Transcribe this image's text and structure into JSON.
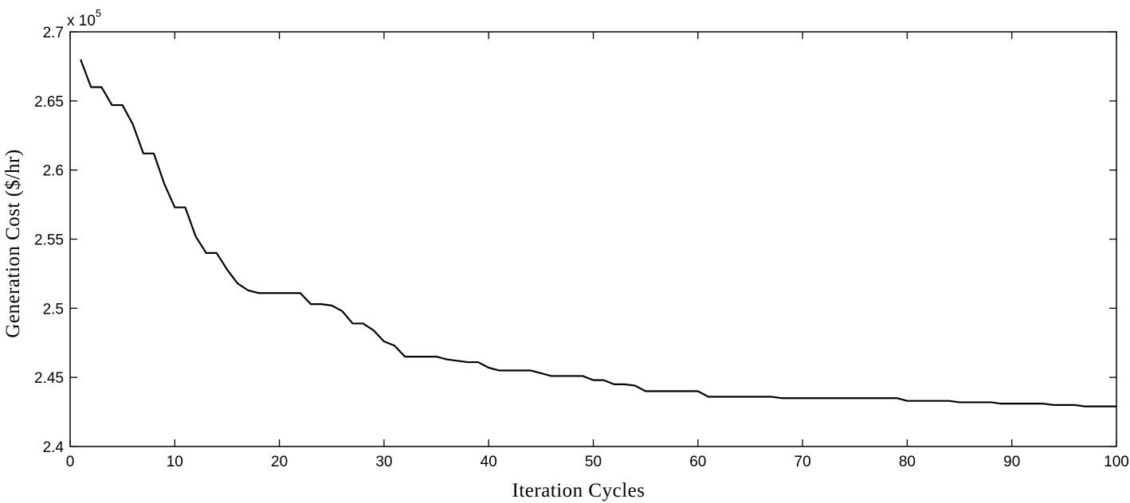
{
  "chart_data": {
    "type": "line",
    "title": "",
    "xlabel": "Iteration Cycles",
    "ylabel": "Generation Cost ($/hr)",
    "y_multiplier_base": "x 10",
    "y_multiplier_exponent": "5",
    "xlim": [
      0,
      100
    ],
    "ylim": [
      2.4,
      2.7
    ],
    "xticks": [
      0,
      10,
      20,
      30,
      40,
      50,
      60,
      70,
      80,
      90,
      100
    ],
    "yticks": [
      2.4,
      2.45,
      2.5,
      2.55,
      2.6,
      2.65,
      2.7
    ],
    "ytick_labels": [
      "2.4",
      "2.45",
      "2.5",
      "2.55",
      "2.6",
      "2.65",
      "2.7"
    ],
    "grid": false,
    "series": [
      {
        "color": "#000000",
        "x": [
          1,
          2,
          3,
          4,
          5,
          6,
          7,
          8,
          9,
          10,
          11,
          12,
          13,
          14,
          15,
          16,
          17,
          18,
          19,
          20,
          21,
          22,
          23,
          24,
          25,
          26,
          27,
          28,
          29,
          30,
          31,
          32,
          33,
          34,
          35,
          36,
          37,
          38,
          39,
          40,
          41,
          42,
          43,
          44,
          45,
          46,
          47,
          48,
          49,
          50,
          51,
          52,
          53,
          54,
          55,
          56,
          57,
          58,
          59,
          60,
          61,
          62,
          63,
          64,
          65,
          66,
          67,
          68,
          69,
          70,
          71,
          72,
          73,
          74,
          75,
          76,
          77,
          78,
          79,
          80,
          81,
          82,
          83,
          84,
          85,
          86,
          87,
          88,
          89,
          90,
          91,
          92,
          93,
          94,
          95,
          96,
          97,
          98,
          99,
          100
        ],
        "y": [
          2.68,
          2.66,
          2.66,
          2.647,
          2.647,
          2.633,
          2.612,
          2.612,
          2.59,
          2.573,
          2.573,
          2.552,
          2.54,
          2.54,
          2.528,
          2.518,
          2.513,
          2.511,
          2.511,
          2.511,
          2.511,
          2.511,
          2.503,
          2.503,
          2.502,
          2.498,
          2.489,
          2.489,
          2.484,
          2.476,
          2.473,
          2.465,
          2.465,
          2.465,
          2.465,
          2.463,
          2.462,
          2.461,
          2.461,
          2.457,
          2.455,
          2.455,
          2.455,
          2.455,
          2.453,
          2.451,
          2.451,
          2.451,
          2.451,
          2.448,
          2.448,
          2.445,
          2.445,
          2.444,
          2.44,
          2.44,
          2.44,
          2.44,
          2.44,
          2.44,
          2.436,
          2.436,
          2.436,
          2.436,
          2.436,
          2.436,
          2.436,
          2.435,
          2.435,
          2.435,
          2.435,
          2.435,
          2.435,
          2.435,
          2.435,
          2.435,
          2.435,
          2.435,
          2.435,
          2.433,
          2.433,
          2.433,
          2.433,
          2.433,
          2.432,
          2.432,
          2.432,
          2.432,
          2.431,
          2.431,
          2.431,
          2.431,
          2.431,
          2.43,
          2.43,
          2.43,
          2.429,
          2.429,
          2.429,
          2.429
        ]
      }
    ]
  }
}
